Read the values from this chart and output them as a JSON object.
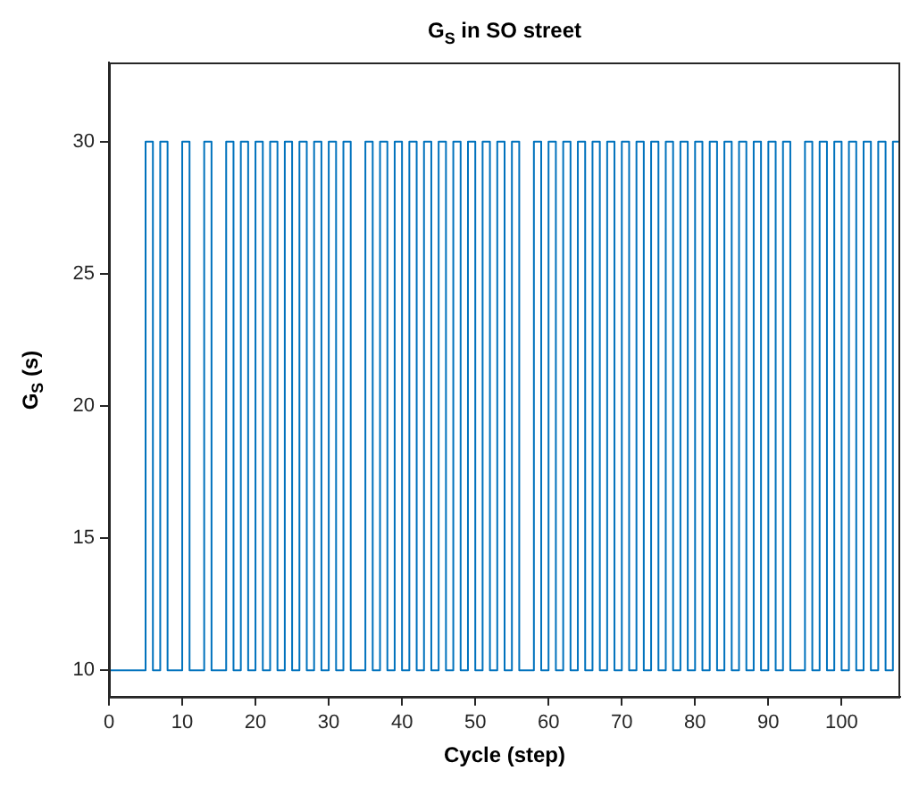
{
  "chart_data": {
    "type": "step",
    "title": "G$_{S}$ in SO street",
    "xlabel": "Cycle (step)",
    "ylabel": "G$_{S}$ (s)",
    "x": [
      0,
      1,
      2,
      3,
      4,
      5,
      6,
      7,
      8,
      9,
      10,
      11,
      12,
      13,
      14,
      15,
      16,
      17,
      18,
      19,
      20,
      21,
      22,
      23,
      24,
      25,
      26,
      27,
      28,
      29,
      30,
      31,
      32,
      33,
      34,
      35,
      36,
      37,
      38,
      39,
      40,
      41,
      42,
      43,
      44,
      45,
      46,
      47,
      48,
      49,
      50,
      51,
      52,
      53,
      54,
      55,
      56,
      57,
      58,
      59,
      60,
      61,
      62,
      63,
      64,
      65,
      66,
      67,
      68,
      69,
      70,
      71,
      72,
      73,
      74,
      75,
      76,
      77,
      78,
      79,
      80,
      81,
      82,
      83,
      84,
      85,
      86,
      87,
      88,
      89,
      90,
      91,
      92,
      93,
      94,
      95,
      96,
      97,
      98,
      99,
      100,
      101,
      102,
      103,
      104,
      105,
      106,
      107,
      108
    ],
    "series": [
      {
        "color": "#0072bd",
        "values": [
          10,
          10,
          10,
          10,
          10,
          30,
          10,
          30,
          10,
          10,
          30,
          10,
          10,
          30,
          10,
          10,
          30,
          10,
          30,
          10,
          30,
          10,
          30,
          10,
          30,
          10,
          30,
          10,
          30,
          10,
          30,
          10,
          30,
          10,
          10,
          30,
          10,
          30,
          10,
          30,
          10,
          30,
          10,
          30,
          10,
          30,
          10,
          30,
          10,
          30,
          10,
          30,
          10,
          30,
          10,
          30,
          10,
          10,
          30,
          10,
          30,
          10,
          30,
          10,
          30,
          10,
          30,
          10,
          30,
          10,
          30,
          10,
          30,
          10,
          30,
          10,
          30,
          10,
          30,
          10,
          30,
          10,
          30,
          10,
          30,
          10,
          30,
          10,
          30,
          10,
          30,
          10,
          30,
          10,
          10,
          30,
          10,
          30,
          10,
          30,
          10,
          30,
          10,
          30,
          10,
          30,
          10,
          30,
          30
        ]
      }
    ],
    "xlim": [
      0,
      108
    ],
    "xticks": [
      0,
      10,
      20,
      30,
      40,
      50,
      60,
      70,
      80,
      90,
      100
    ],
    "ylim": [
      9,
      33
    ],
    "yticks": [
      10,
      15,
      20,
      25,
      30
    ],
    "grid": false,
    "legend": false
  }
}
